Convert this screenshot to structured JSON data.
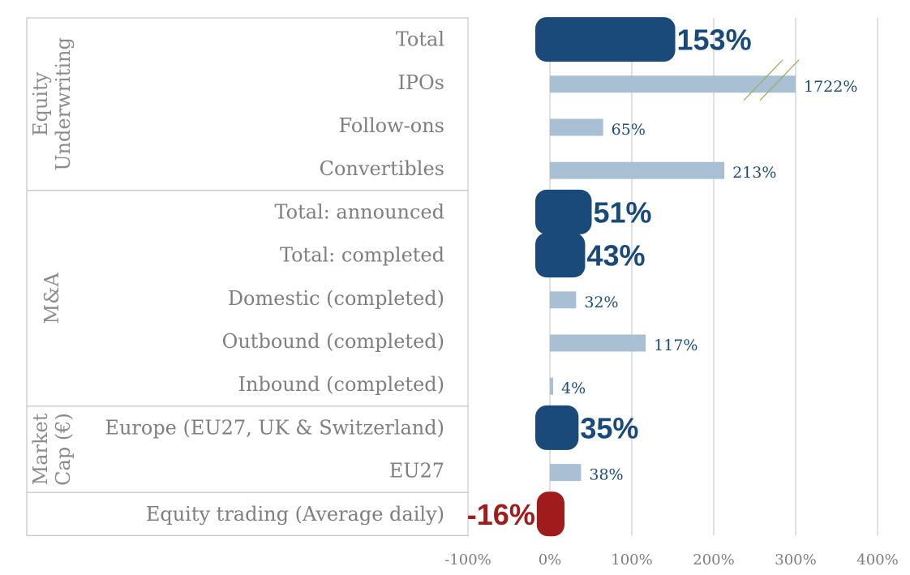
{
  "chart_data": {
    "type": "bar",
    "orientation": "horizontal",
    "xlim": [
      -100,
      400
    ],
    "x_ticks": [
      "-100%",
      "0%",
      "100%",
      "200%",
      "300%",
      "400%"
    ],
    "grid": "vertical",
    "groups": [
      {
        "label_lines": [
          "Equity",
          "Underwriting"
        ],
        "rows": 4
      },
      {
        "label_lines": [
          "M&A"
        ],
        "rows": 5
      },
      {
        "label_lines": [
          "Market",
          "Cap (€)"
        ],
        "rows": 2
      },
      {
        "label_lines": [],
        "rows": 1
      }
    ],
    "categories": [
      "Total",
      "IPOs",
      "Follow-ons",
      "Convertibles",
      "Total: announced",
      "Total: completed",
      "Domestic (completed)",
      "Outbound (completed)",
      "Inbound (completed)",
      "Europe (EU27, UK & Switzerland)",
      "EU27",
      "Equity trading (Average daily)"
    ],
    "values": [
      153,
      1722,
      65,
      213,
      51,
      43,
      32,
      117,
      4,
      35,
      38,
      -16
    ],
    "value_labels": [
      "153%",
      "1722%",
      "65%",
      "213%",
      "51%",
      "43%",
      "32%",
      "117%",
      "4%",
      "35%",
      "38%",
      "-16%"
    ],
    "emphasis": [
      "big",
      "small",
      "small",
      "small",
      "big",
      "big",
      "small",
      "small",
      "small",
      "big",
      "small",
      "big"
    ],
    "truncated_bars": {
      "IPOs": 300
    },
    "colors": {
      "big_positive": "#1a4a7a",
      "big_negative": "#a01c1c",
      "small_bar": "#a9bfd3",
      "small_label": "#1f4e79",
      "big_label_positive": "#1a4a7a",
      "big_label_negative": "#a01c1c",
      "grid": "#cfcfcf",
      "separator": "#c8c8c8",
      "break_mark": "#8fb35a"
    }
  }
}
